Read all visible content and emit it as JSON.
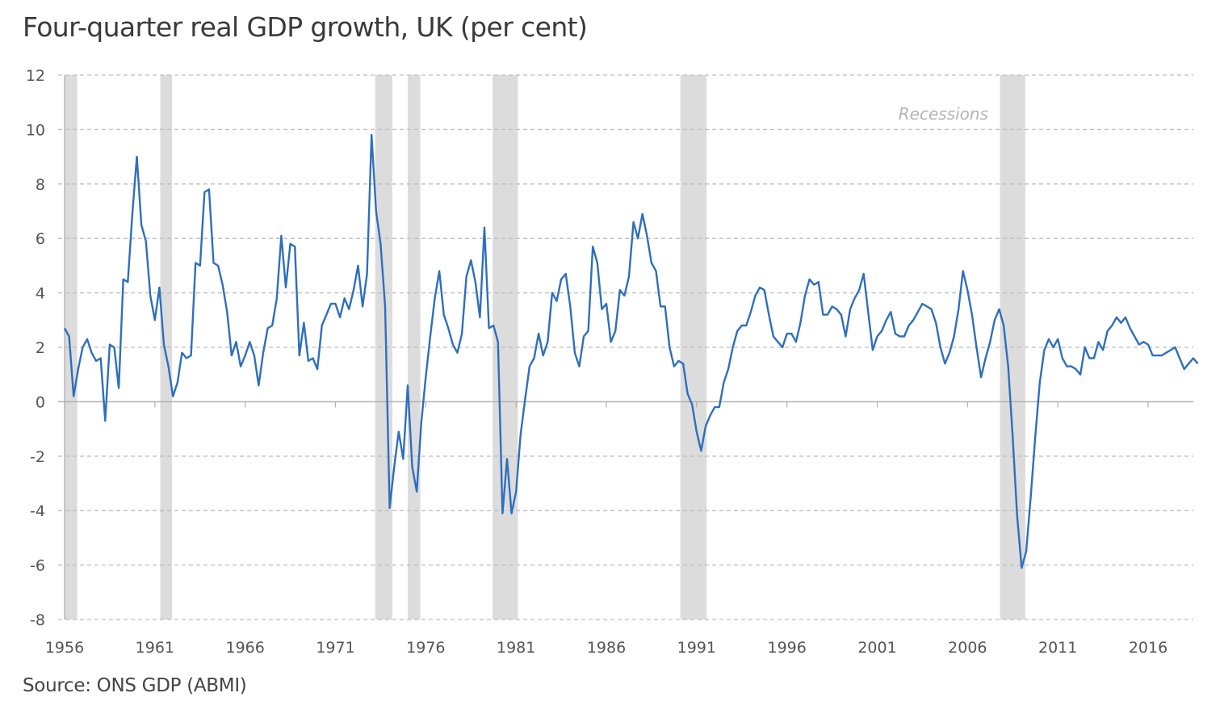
{
  "chart_data": {
    "type": "line",
    "title": "Four-quarter real GDP growth, UK (per cent)",
    "source": "Source: ONS GDP (ABMI)",
    "xlabel": "",
    "ylabel": "",
    "ylim": [
      -8,
      12
    ],
    "yticks": [
      12,
      10,
      8,
      6,
      4,
      2,
      0,
      -2,
      -4,
      -6,
      -8
    ],
    "xticks": [
      1956,
      1961,
      1966,
      1971,
      1976,
      1981,
      1986,
      1991,
      1996,
      2001,
      2006,
      2011,
      2016
    ],
    "xlim": [
      1956,
      2018.6
    ],
    "grid": true,
    "frequency": "quarterly",
    "start_period": "1956Q1",
    "annotation": "Recessions",
    "line_color": "#2e6fbd",
    "recession_color": "#dcdcdc",
    "recessions": [
      {
        "start": 1956.0,
        "end": 1956.7
      },
      {
        "start": 1961.3,
        "end": 1961.95
      },
      {
        "start": 1973.2,
        "end": 1974.15
      },
      {
        "start": 1975.0,
        "end": 1975.7
      },
      {
        "start": 1979.7,
        "end": 1981.1
      },
      {
        "start": 1990.1,
        "end": 1991.55
      },
      {
        "start": 2007.8,
        "end": 2009.2
      }
    ],
    "series": [
      {
        "name": "Four-quarter real GDP growth",
        "values": [
          2.7,
          2.4,
          0.2,
          1.2,
          2.0,
          2.3,
          1.8,
          1.5,
          1.6,
          -0.7,
          2.1,
          2.0,
          0.5,
          4.5,
          4.4,
          6.9,
          9.0,
          6.5,
          5.9,
          3.9,
          3.0,
          4.2,
          2.1,
          1.3,
          0.2,
          0.7,
          1.8,
          1.6,
          1.7,
          5.1,
          5.0,
          7.7,
          7.8,
          5.1,
          5.0,
          4.3,
          3.3,
          1.7,
          2.2,
          1.3,
          1.7,
          2.2,
          1.7,
          0.6,
          1.8,
          2.7,
          2.8,
          3.8,
          6.1,
          4.2,
          5.8,
          5.7,
          1.7,
          2.9,
          1.5,
          1.6,
          1.2,
          2.8,
          3.2,
          3.6,
          3.6,
          3.1,
          3.8,
          3.4,
          4.1,
          5.0,
          3.5,
          4.7,
          9.8,
          7.0,
          5.8,
          3.5,
          -3.9,
          -2.4,
          -1.1,
          -2.1,
          0.6,
          -2.4,
          -3.3,
          -0.8,
          0.9,
          2.4,
          3.8,
          4.8,
          3.2,
          2.7,
          2.1,
          1.8,
          2.5,
          4.6,
          5.2,
          4.4,
          3.1,
          6.4,
          2.7,
          2.8,
          2.2,
          -4.1,
          -2.1,
          -4.1,
          -3.3,
          -1.2,
          0.1,
          1.3,
          1.6,
          2.5,
          1.7,
          2.2,
          4.0,
          3.7,
          4.5,
          4.7,
          3.5,
          1.8,
          1.3,
          2.4,
          2.6,
          5.7,
          5.1,
          3.4,
          3.6,
          2.2,
          2.6,
          4.1,
          3.9,
          4.6,
          6.6,
          6.0,
          6.9,
          6.1,
          5.1,
          4.8,
          3.5,
          3.5,
          2.0,
          1.3,
          1.5,
          1.4,
          0.3,
          -0.1,
          -1.1,
          -1.8,
          -0.9,
          -0.5,
          -0.2,
          -0.2,
          0.7,
          1.2,
          2.0,
          2.6,
          2.8,
          2.8,
          3.3,
          3.9,
          4.2,
          4.1,
          3.2,
          2.4,
          2.2,
          2.0,
          2.5,
          2.5,
          2.2,
          2.9,
          3.9,
          4.5,
          4.3,
          4.4,
          3.2,
          3.2,
          3.5,
          3.4,
          3.2,
          2.4,
          3.4,
          3.8,
          4.1,
          4.7,
          3.3,
          1.9,
          2.4,
          2.6,
          3.0,
          3.3,
          2.5,
          2.4,
          2.4,
          2.8,
          3.0,
          3.3,
          3.6,
          3.5,
          3.4,
          2.9,
          2.0,
          1.4,
          1.8,
          2.4,
          3.4,
          4.8,
          4.1,
          3.2,
          2.0,
          0.9,
          1.6,
          2.2,
          3.0,
          3.4,
          2.8,
          1.3,
          -1.3,
          -4.2,
          -6.1,
          -5.5,
          -3.5,
          -1.3,
          0.7,
          1.9,
          2.3,
          2.0,
          2.3,
          1.6,
          1.3,
          1.3,
          1.2,
          1.0,
          2.0,
          1.6,
          1.6,
          2.2,
          1.9,
          2.6,
          2.8,
          3.1,
          2.9,
          3.1,
          2.7,
          2.4,
          2.1,
          2.2,
          2.1,
          1.7,
          1.7,
          1.7,
          1.8,
          1.9,
          2.0,
          1.6,
          1.2,
          1.4,
          1.6,
          1.4
        ]
      }
    ]
  }
}
